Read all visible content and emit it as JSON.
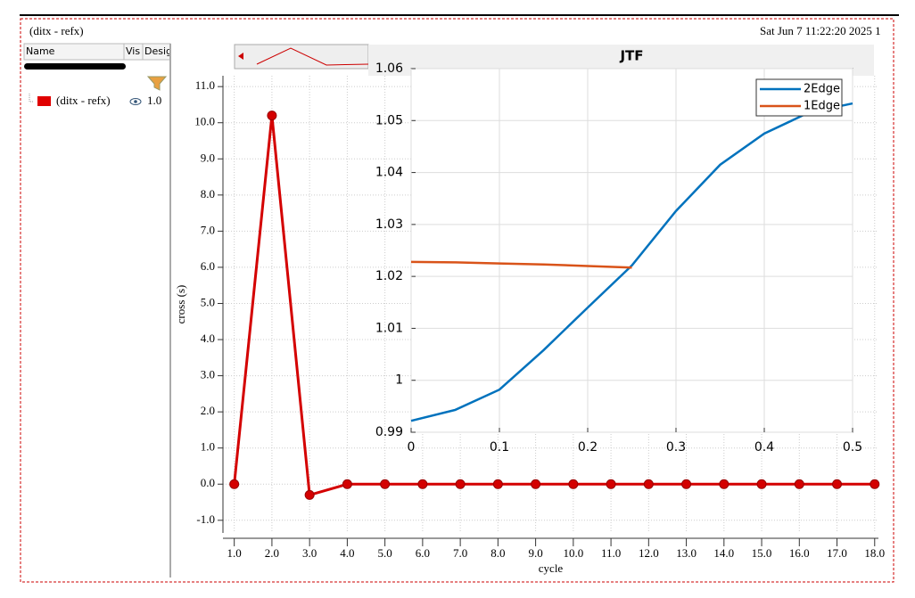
{
  "header": {
    "title": "(ditx - refx)",
    "timestamp": "Sat Jun 7 11:22:20 2025  1"
  },
  "sidebar": {
    "columns": [
      "Name",
      "Vis",
      "Desig"
    ],
    "rows": [
      {
        "name": "(ditx - refx)",
        "value": "1.0"
      }
    ]
  },
  "chart_data": [
    {
      "type": "line",
      "x_label": "cycle",
      "y_label": "cross (s)",
      "x": [
        1,
        2,
        3,
        4,
        5,
        6,
        7,
        8,
        9,
        10,
        11,
        12,
        13,
        14,
        15,
        16,
        17,
        18
      ],
      "series": [
        {
          "name": "(ditx - refx)",
          "color": "#d40000",
          "values": [
            0,
            10.2,
            -0.3,
            0,
            0,
            0,
            0,
            0,
            0,
            0,
            0,
            0,
            0,
            0,
            0,
            0,
            0,
            0
          ]
        }
      ],
      "xlim": [
        0.7,
        18.1
      ],
      "xticks": [
        {
          "value": 1,
          "label": "1.0"
        },
        {
          "value": 2,
          "label": "2.0"
        },
        {
          "value": 3,
          "label": "3.0"
        },
        {
          "value": 4,
          "label": "4.0"
        },
        {
          "value": 5,
          "label": "5.0"
        },
        {
          "value": 6,
          "label": "6.0"
        },
        {
          "value": 7,
          "label": "7.0"
        },
        {
          "value": 8,
          "label": "8.0"
        },
        {
          "value": 9,
          "label": "9.0"
        },
        {
          "value": 10,
          "label": "10.0"
        },
        {
          "value": 11,
          "label": "11.0"
        },
        {
          "value": 12,
          "label": "12.0"
        },
        {
          "value": 13,
          "label": "13.0"
        },
        {
          "value": 14,
          "label": "14.0"
        },
        {
          "value": 15,
          "label": "15.0"
        },
        {
          "value": 16,
          "label": "16.0"
        },
        {
          "value": 17,
          "label": "17.0"
        },
        {
          "value": 18,
          "label": "18.0"
        }
      ],
      "ylim": [
        -1.35,
        11.3
      ],
      "yticks": [
        {
          "value": -1,
          "label": "-1.0"
        },
        {
          "value": 0,
          "label": "0.0"
        },
        {
          "value": 1,
          "label": "1.0"
        },
        {
          "value": 2,
          "label": "2.0"
        },
        {
          "value": 3,
          "label": "3.0"
        },
        {
          "value": 4,
          "label": "4.0"
        },
        {
          "value": 5,
          "label": "5.0"
        },
        {
          "value": 6,
          "label": "6.0"
        },
        {
          "value": 7,
          "label": "7.0"
        },
        {
          "value": 8,
          "label": "8.0"
        },
        {
          "value": 9,
          "label": "9.0"
        },
        {
          "value": 10,
          "label": "10.0"
        },
        {
          "value": 11,
          "label": "11.0"
        }
      ],
      "grid": true,
      "markers": true
    },
    {
      "type": "line",
      "title": "JTF",
      "x": [
        0,
        0.05,
        0.1,
        0.15,
        0.2,
        0.25,
        0.3,
        0.35,
        0.4,
        0.45,
        0.5
      ],
      "series": [
        {
          "name": "2Edge",
          "color": "#0072bd",
          "values": [
            0.9922,
            0.9943,
            0.9982,
            1.0058,
            1.014,
            1.0221,
            1.0326,
            1.0415,
            1.0475,
            1.0515,
            1.0533
          ]
        },
        {
          "name": "1Edge",
          "color": "#d95319",
          "values": [
            1.0228,
            1.0227,
            1.0225,
            1.0223,
            1.022,
            1.0217,
            null,
            null,
            null,
            null,
            null
          ]
        }
      ],
      "xlim": [
        0,
        0.5
      ],
      "xticks": [
        0,
        0.1,
        0.2,
        0.3,
        0.4,
        0.5
      ],
      "ylim": [
        0.99,
        1.06
      ],
      "yticks": [
        0.99,
        1,
        1.01,
        1.02,
        1.03,
        1.04,
        1.05,
        1.06
      ],
      "grid": true,
      "legend": "top-right",
      "markers": false
    }
  ]
}
